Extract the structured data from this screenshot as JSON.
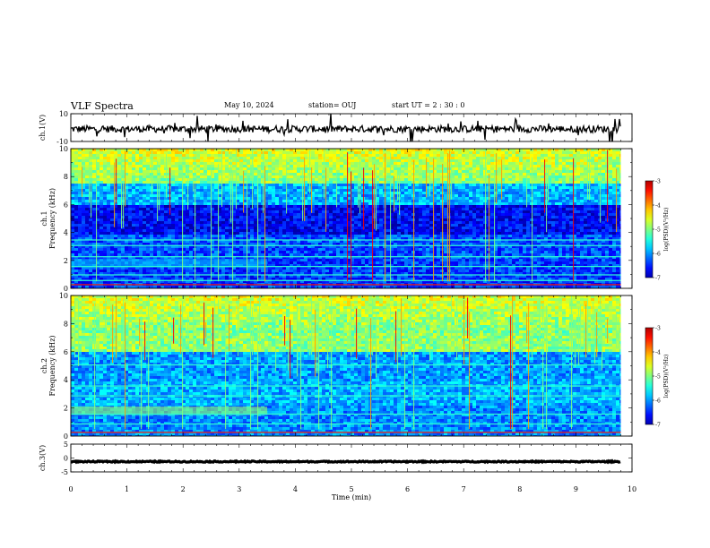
{
  "header": {
    "title": "VLF Spectra",
    "date": "May 10, 2024",
    "station": "station= OUJ",
    "start": "start  UT =   2 : 30 : 0"
  },
  "chart_data": [
    {
      "type": "line",
      "panel": "ch1-waveform",
      "ylabel": "ch.1(V)",
      "ylim": [
        -10,
        10
      ],
      "yticks": [
        10,
        -10
      ],
      "xlim": [
        0,
        10
      ],
      "baseline": -1,
      "series_color": "#000000"
    },
    {
      "type": "heatmap",
      "panel": "ch1-spectrogram",
      "ylabel": "ch.1\nFrequency (kHz)",
      "ylabel_lines": [
        "ch.1",
        "Frequency (kHz)"
      ],
      "ylim": [
        0,
        10
      ],
      "yticks": [
        0,
        2,
        4,
        6,
        8,
        10
      ],
      "xlim": [
        0,
        10
      ],
      "data_extent_min": 9.8,
      "colorbar": {
        "label": "log(PSD)(V²/Hz)",
        "range": [
          -7,
          -3
        ],
        "ticks": [
          -3,
          -4,
          -5,
          -6,
          -7
        ]
      }
    },
    {
      "type": "heatmap",
      "panel": "ch2-spectrogram",
      "ylabel": "ch.2\nFrequency (kHz)",
      "ylabel_lines": [
        "ch.2",
        "Frequency (kHz)"
      ],
      "ylim": [
        0,
        10
      ],
      "yticks": [
        0,
        2,
        4,
        6,
        8,
        10
      ],
      "xlim": [
        0,
        10
      ],
      "data_extent_min": 9.8,
      "colorbar": {
        "label": "log(PSD)(V²/Hz)",
        "range": [
          -7,
          -3
        ],
        "ticks": [
          -3,
          -4,
          -5,
          -6,
          -7
        ]
      }
    },
    {
      "type": "line",
      "panel": "ch3-waveform",
      "ylabel": "ch.3(V)",
      "ylim": [
        -5,
        5
      ],
      "yticks": [
        5,
        0,
        -5
      ],
      "xlim": [
        0,
        10
      ],
      "baseline": -1.3,
      "series_color": "#000000",
      "xlabel": "Time (min)",
      "xticks": [
        0,
        1,
        2,
        3,
        4,
        5,
        6,
        7,
        8,
        9,
        10
      ]
    }
  ]
}
